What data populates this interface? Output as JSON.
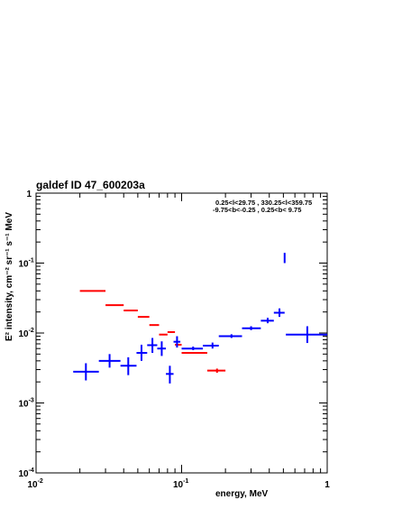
{
  "chart_data": {
    "type": "scatter",
    "title": "galdef ID 47_600203a",
    "annotation_lines": [
      "0.25<l<29.75 , 330.25<l<359.75",
      "-9.75<b<-0.25 ,  0.25<b< 9.75"
    ],
    "xlabel": "energy, MeV",
    "ylabel": "E² intensity, cm⁻² sr⁻¹ s⁻¹ MeV",
    "xscale": "log",
    "yscale": "log",
    "xlim": [
      0.01,
      1
    ],
    "ylim": [
      0.0001,
      1
    ],
    "x_ticks": [
      {
        "value": 0.01,
        "base": "10",
        "exp": "-2"
      },
      {
        "value": 0.1,
        "base": "10",
        "exp": "-1"
      },
      {
        "value": 1,
        "base": "1",
        "exp": ""
      }
    ],
    "y_ticks": [
      {
        "value": 0.0001,
        "base": "10",
        "exp": "-4"
      },
      {
        "value": 0.001,
        "base": "10",
        "exp": "-3"
      },
      {
        "value": 0.01,
        "base": "10",
        "exp": "-2"
      },
      {
        "value": 0.1,
        "base": "10",
        "exp": "-1"
      },
      {
        "value": 1,
        "base": "1",
        "exp": ""
      }
    ],
    "series": [
      {
        "color": "#ff0000",
        "points": [
          {
            "x": 0.025,
            "xlo": 0.02,
            "xhi": 0.03,
            "y": 0.04
          },
          {
            "x": 0.035,
            "xlo": 0.03,
            "xhi": 0.04,
            "y": 0.025
          },
          {
            "x": 0.045,
            "xlo": 0.04,
            "xhi": 0.05,
            "y": 0.021
          },
          {
            "x": 0.055,
            "xlo": 0.05,
            "xhi": 0.06,
            "y": 0.017
          },
          {
            "x": 0.065,
            "xlo": 0.06,
            "xhi": 0.07,
            "y": 0.013
          },
          {
            "x": 0.075,
            "xlo": 0.07,
            "xhi": 0.08,
            "y": 0.0095
          },
          {
            "x": 0.085,
            "xlo": 0.08,
            "xhi": 0.09,
            "y": 0.0103
          },
          {
            "x": 0.095,
            "xlo": 0.09,
            "xhi": 0.1,
            "y": 0.0068
          },
          {
            "x": 0.125,
            "xlo": 0.1,
            "xhi": 0.15,
            "y": 0.0052
          },
          {
            "x": 0.175,
            "xlo": 0.15,
            "xhi": 0.2,
            "y": 0.0029,
            "ylo": 0.0027,
            "yhi": 0.0031
          }
        ]
      },
      {
        "color": "#0000ff",
        "points": [
          {
            "x": 0.022,
            "xlo": 0.018,
            "xhi": 0.027,
            "y": 0.0028,
            "ylo": 0.0021,
            "yhi": 0.0037
          },
          {
            "x": 0.032,
            "xlo": 0.027,
            "xhi": 0.038,
            "y": 0.004,
            "ylo": 0.0032,
            "yhi": 0.005
          },
          {
            "x": 0.043,
            "xlo": 0.038,
            "xhi": 0.049,
            "y": 0.0034,
            "ylo": 0.0025,
            "yhi": 0.0045
          },
          {
            "x": 0.053,
            "xlo": 0.049,
            "xhi": 0.058,
            "y": 0.0052,
            "ylo": 0.004,
            "yhi": 0.0068
          },
          {
            "x": 0.063,
            "xlo": 0.058,
            "xhi": 0.068,
            "y": 0.0067,
            "ylo": 0.0052,
            "yhi": 0.0085
          },
          {
            "x": 0.073,
            "xlo": 0.068,
            "xhi": 0.078,
            "y": 0.006,
            "ylo": 0.0047,
            "yhi": 0.0076
          },
          {
            "x": 0.083,
            "xlo": 0.078,
            "xhi": 0.088,
            "y": 0.0026,
            "ylo": 0.0019,
            "yhi": 0.0034
          },
          {
            "x": 0.093,
            "xlo": 0.088,
            "xhi": 0.098,
            "y": 0.0075,
            "ylo": 0.0062,
            "yhi": 0.009
          },
          {
            "x": 0.12,
            "xlo": 0.1,
            "xhi": 0.14,
            "y": 0.006,
            "ylo": 0.0057,
            "yhi": 0.0064
          },
          {
            "x": 0.163,
            "xlo": 0.14,
            "xhi": 0.18,
            "y": 0.0066,
            "ylo": 0.006,
            "yhi": 0.0073
          },
          {
            "x": 0.22,
            "xlo": 0.18,
            "xhi": 0.26,
            "y": 0.009,
            "ylo": 0.0085,
            "yhi": 0.0096
          },
          {
            "x": 0.3,
            "xlo": 0.26,
            "xhi": 0.35,
            "y": 0.0117,
            "ylo": 0.011,
            "yhi": 0.0125
          },
          {
            "x": 0.39,
            "xlo": 0.35,
            "xhi": 0.43,
            "y": 0.015,
            "ylo": 0.0138,
            "yhi": 0.0165
          },
          {
            "x": 0.47,
            "xlo": 0.43,
            "xhi": 0.51,
            "y": 0.0195,
            "ylo": 0.017,
            "yhi": 0.0225
          },
          {
            "x": 0.51,
            "y": 0.12,
            "ylo": 0.1,
            "yhi": 0.14
          },
          {
            "x": 0.73,
            "xlo": 0.52,
            "xhi": 1.0,
            "y": 0.0095,
            "ylo": 0.0072,
            "yhi": 0.0125
          }
        ]
      }
    ]
  }
}
